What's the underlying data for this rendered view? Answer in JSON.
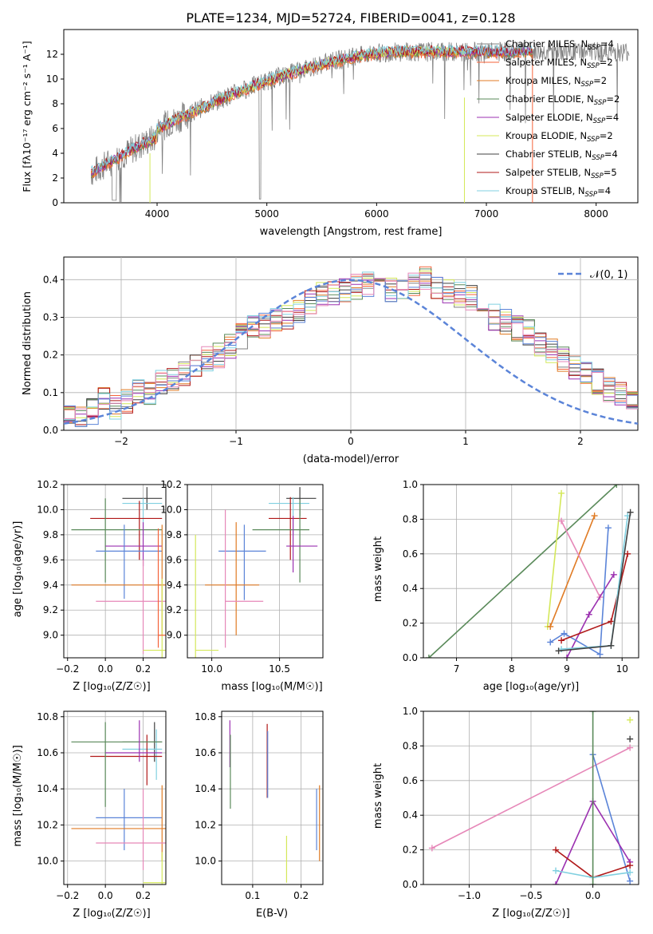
{
  "title": "PLATE=1234, MJD=52724, FIBERID=0041, z=0.128",
  "colors": {
    "gray": "#808080",
    "coral": "#f4623a",
    "orange": "#e07b24",
    "green": "#5a8a5a",
    "purple": "#9b30b0",
    "yellow": "#d4e85a",
    "dark": "#404040",
    "red": "#b01818",
    "cyan": "#80d0e0",
    "blue": "#5b84d8",
    "pink": "#e687b8"
  },
  "spectrum": {
    "xlabel": "wavelength [Angstrom, rest frame]",
    "ylabel": "Flux [fλ10⁻¹⁷ erg cm⁻² s⁻¹ A⁻¹]",
    "xlim": [
      3150,
      8380
    ],
    "ylim": [
      0,
      14
    ],
    "xticks": [
      "4000",
      "5000",
      "6000",
      "7000",
      "8000"
    ],
    "yticks": [
      "0",
      "2",
      "4",
      "6",
      "8",
      "10",
      "12"
    ],
    "legend": [
      {
        "label": "Chabrier MILES, N_SSP=4",
        "color": "#808080"
      },
      {
        "label": "Salpeter MILES, N_SSP=2",
        "color": "#f4623a"
      },
      {
        "label": "Kroupa MILES, N_SSP=2",
        "color": "#e07b24"
      },
      {
        "label": "Chabrier ELODIE, N_SSP=2",
        "color": "#5a8a5a"
      },
      {
        "label": "Salpeter ELODIE, N_SSP=4",
        "color": "#9b30b0"
      },
      {
        "label": "Kroupa ELODIE, N_SSP=2",
        "color": "#d4e85a"
      },
      {
        "label": "Chabrier STELIB, N_SSP=4",
        "color": "#404040"
      },
      {
        "label": "Salpeter STELIB, N_SSP=5",
        "color": "#b01818"
      },
      {
        "label": "Kroupa STELIB, N_SSP=4",
        "color": "#80d0e0"
      }
    ]
  },
  "histogram": {
    "xlabel": "(data-model)/error",
    "ylabel": "Normed distribution",
    "xlim": [
      -2.5,
      2.5
    ],
    "ylim": [
      0,
      0.46
    ],
    "xticks": [
      "−2",
      "−1",
      "0",
      "1",
      "2"
    ],
    "yticks": [
      "0.0",
      "0.1",
      "0.2",
      "0.3",
      "0.4"
    ],
    "legend_label": "𝒩(0, 1)"
  },
  "panels": {
    "age_vs_Z": {
      "xlabel": "Z [log₁₀(Z/Z☉)]",
      "ylabel": "age  [log₁₀(age/yr)]",
      "xticks": [
        "−0.2",
        "0.0",
        "0.2"
      ],
      "yticks": [
        "9.0",
        "9.2",
        "9.4",
        "9.6",
        "9.8",
        "10.0",
        "10.2"
      ]
    },
    "age_vs_mass": {
      "xlabel": "mass [log₁₀(M/M☉)]",
      "xticks": [
        "10.0",
        "10.5"
      ],
      "yticks": [
        "9.0",
        "9.2",
        "9.4",
        "9.6",
        "9.8",
        "10.0",
        "10.2"
      ]
    },
    "weight_vs_age": {
      "xlabel": "age  [log₁₀(age/yr)]",
      "ylabel": "mass weight",
      "xticks": [
        "7",
        "8",
        "9",
        "10"
      ],
      "yticks": [
        "0.0",
        "0.2",
        "0.4",
        "0.6",
        "0.8",
        "1.0"
      ]
    },
    "mass_vs_Z": {
      "xlabel": "Z [log₁₀(Z/Z☉)]",
      "ylabel": "mass [log₁₀(M/M☉)]",
      "xticks": [
        "−0.2",
        "0.0",
        "0.2"
      ],
      "yticks": [
        "10.0",
        "10.2",
        "10.4",
        "10.6",
        "10.8"
      ]
    },
    "mass_vs_ebv": {
      "xlabel": "E(B-V)",
      "xticks": [
        "0.1",
        "0.2"
      ],
      "yticks": [
        "10.0",
        "10.2",
        "10.4",
        "10.6",
        "10.8"
      ]
    },
    "weight_vs_Z": {
      "xlabel": "Z [log₁₀(Z/Z☉)]",
      "ylabel": "mass weight",
      "xticks": [
        "−1.0",
        "−0.5",
        "0.0"
      ],
      "yticks": [
        "0.0",
        "0.2",
        "0.4",
        "0.6",
        "0.8",
        "1.0"
      ]
    }
  },
  "chart_data": [
    {
      "type": "line",
      "note_series": "smoothed model fits over observed spectrum",
      "x": [
        3400,
        3500,
        3700,
        3900,
        4000,
        4200,
        4500,
        5000,
        5500,
        6000,
        6500,
        7000,
        7400,
        7800,
        8200
      ],
      "series": [
        {
          "name": "Chabrier MILES, N_SSP=4",
          "values": [
            3.0,
            3.6,
            4.3,
            5.6,
            6.5,
            7.8,
            8.7,
            10.1,
            11.1,
            11.8,
            12.1,
            12.3,
            12.3,
            12.1,
            null
          ]
        },
        {
          "name": "Kroupa STELIB, N_SSP=4",
          "values": [
            3.0,
            3.5,
            4.2,
            5.5,
            6.6,
            7.9,
            8.8,
            10.2,
            11.3,
            11.9,
            12.2,
            12.5,
            12.6,
            12.4,
            12.3
          ]
        }
      ]
    },
    {
      "type": "bar",
      "bin_edges_start": -2.5,
      "bin_width": 0.1,
      "values": [
        0.03,
        0.03,
        0.05,
        0.08,
        0.06,
        0.08,
        0.1,
        0.1,
        0.13,
        0.14,
        0.15,
        0.17,
        0.19,
        0.2,
        0.22,
        0.25,
        0.27,
        0.28,
        0.29,
        0.3,
        0.32,
        0.34,
        0.36,
        0.36,
        0.37,
        0.38,
        0.39,
        0.38,
        0.37,
        0.38,
        0.39,
        0.4,
        0.38,
        0.37,
        0.36,
        0.35,
        0.33,
        0.3,
        0.29,
        0.27,
        0.26,
        0.23,
        0.21,
        0.19,
        0.17,
        0.15,
        0.13,
        0.11,
        0.1,
        0.08
      ],
      "overlay": {
        "name": "𝒩(0, 1)",
        "mean": 0,
        "std": 1
      }
    },
    {
      "type": "scatter",
      "panel": "weight_vs_age",
      "series": [
        {
          "color": "#5a8a5a",
          "x": [
            6.5,
            9.9
          ],
          "y": [
            0.0,
            1.0
          ]
        },
        {
          "color": "#d4e85a",
          "x": [
            8.65,
            8.9
          ],
          "y": [
            0.18,
            0.95
          ]
        },
        {
          "color": "#e07b24",
          "x": [
            8.7,
            9.5
          ],
          "y": [
            0.18,
            0.82
          ]
        },
        {
          "color": "#e687b8",
          "x": [
            8.9,
            9.6
          ],
          "y": [
            0.79,
            0.35
          ]
        },
        {
          "color": "#9b30b0",
          "x": [
            9.0,
            9.4,
            9.85
          ],
          "y": [
            0.0,
            0.25,
            0.48
          ]
        },
        {
          "color": "#5b84d8",
          "x": [
            8.7,
            8.95,
            9.6,
            9.75
          ],
          "y": [
            0.09,
            0.14,
            0.02,
            0.75
          ]
        },
        {
          "color": "#b01818",
          "x": [
            8.9,
            9.8,
            10.1
          ],
          "y": [
            0.1,
            0.21,
            0.6
          ]
        },
        {
          "color": "#80d0e0",
          "x": [
            8.9,
            9.8,
            10.1
          ],
          "y": [
            0.05,
            0.07,
            0.82
          ]
        },
        {
          "color": "#404040",
          "x": [
            8.85,
            9.8,
            10.15
          ],
          "y": [
            0.04,
            0.07,
            0.84
          ]
        }
      ]
    },
    {
      "type": "scatter",
      "panel": "weight_vs_Z",
      "series": [
        {
          "color": "#e687b8",
          "x": [
            -1.3,
            0.3
          ],
          "y": [
            0.21,
            0.79
          ]
        },
        {
          "color": "#5b84d8",
          "x": [
            0.0,
            0.3
          ],
          "y": [
            0.75,
            0.02
          ]
        },
        {
          "color": "#9b30b0",
          "x": [
            -0.3,
            0.0,
            0.3
          ],
          "y": [
            0.0,
            0.48,
            0.13
          ]
        },
        {
          "color": "#b01818",
          "x": [
            -0.3,
            0.0,
            0.3
          ],
          "y": [
            0.2,
            0.04,
            0.11
          ]
        },
        {
          "color": "#80d0e0",
          "x": [
            -0.3,
            0.0,
            0.3
          ],
          "y": [
            0.08,
            0.04,
            0.07
          ]
        },
        {
          "color": "#5a8a5a",
          "x": [
            0.0,
            0.0
          ],
          "y": [
            0.0,
            1.0
          ]
        },
        {
          "color": "#d4e85a",
          "x": [
            0.3
          ],
          "y": [
            0.95
          ]
        },
        {
          "color": "#404040",
          "x": [
            0.3
          ],
          "y": [
            0.84
          ]
        }
      ]
    }
  ]
}
